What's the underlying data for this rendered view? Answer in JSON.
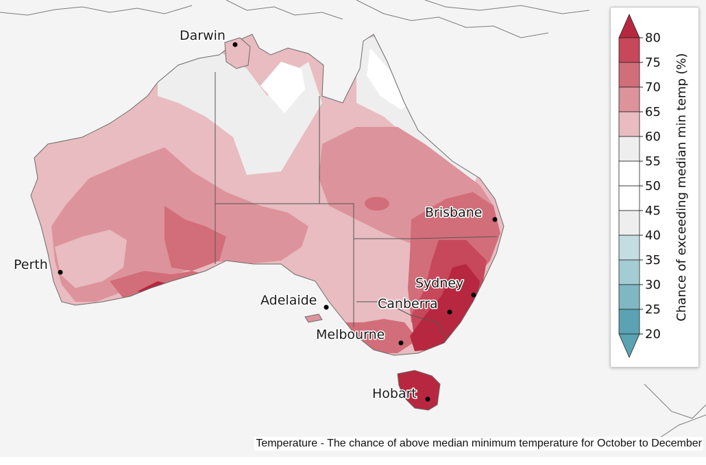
{
  "map": {
    "cities": [
      {
        "name": "Darwin"
      },
      {
        "name": "Perth"
      },
      {
        "name": "Brisbane"
      },
      {
        "name": "Sydney"
      },
      {
        "name": "Adelaide"
      },
      {
        "name": "Canberra"
      },
      {
        "name": "Melbourne"
      },
      {
        "name": "Hobart"
      }
    ]
  },
  "legend": {
    "title": "Chance of exceeding median min temp (%)",
    "ticks": [
      "80",
      "75",
      "70",
      "65",
      "60",
      "55",
      "50",
      "45",
      "40",
      "35",
      "30",
      "25",
      "20"
    ],
    "colors": {
      "80": "#b7273f",
      "75": "#c6485a",
      "70": "#d26e79",
      "65": "#dd939b",
      "60": "#e8bcc0",
      "55": "#eeeeee",
      "50": "#ffffff",
      "45": "#ffffff",
      "40": "#eeeeee",
      "35": "#c3dde2",
      "30": "#a3ccd4",
      "25": "#7fb8c3",
      "20": "#5aa3b2"
    }
  },
  "caption": "Temperature - The chance of above median minimum temperature for October to December"
}
